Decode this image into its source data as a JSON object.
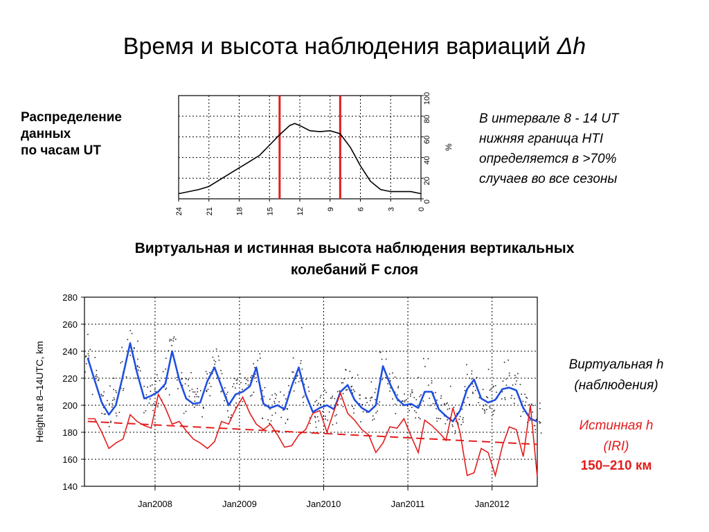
{
  "title": {
    "text": "Время и высота наблюдения вариаций ",
    "delta": "Δh"
  },
  "left_caption": {
    "line1": "Распределение",
    "line2": "данных",
    "line3": "по часам UT"
  },
  "right_caption": {
    "line1": "В интервале 8 - 14 UT",
    "line2": "нижняя граница HTI",
    "line3": "определяется в >70%",
    "line4": "случаев во все сезоны"
  },
  "subtitle": {
    "line1": "Виртуальная и истинная высота наблюдения вертикальных",
    "line2": "колебаний F слоя"
  },
  "legend": {
    "virtual_line1": "Виртуальная h",
    "virtual_line2": "(наблюдения)",
    "true_line1": "Истинная h",
    "true_line2": "(IRI)",
    "range": "150–210 км"
  },
  "colors": {
    "red": "#e21c1c",
    "blue": "#1f4fe0",
    "black": "#000000",
    "dots": "#222222"
  },
  "chart_data": [
    {
      "type": "line",
      "title": "",
      "x_ticks": [
        "24",
        "21",
        "18",
        "15",
        "12",
        "9",
        "6",
        "3",
        "0"
      ],
      "y_ticks": [
        "0",
        "20",
        "40",
        "60",
        "80",
        "100"
      ],
      "ylabel": "%",
      "xlim": [
        24,
        0
      ],
      "ylim": [
        0,
        100
      ],
      "grid": true,
      "vertical_markers_x": [
        14,
        8
      ],
      "series": [
        {
          "x": [
            24,
            23,
            22,
            21,
            20,
            19,
            18,
            17,
            16,
            15,
            14,
            13,
            12.5,
            12,
            11,
            10,
            9,
            8,
            7,
            6,
            5,
            4,
            3,
            2,
            1,
            0
          ],
          "values": [
            5,
            7,
            9,
            12,
            18,
            24,
            30,
            36,
            42,
            52,
            62,
            71,
            73,
            71,
            66,
            65,
            66,
            63,
            50,
            32,
            17,
            9,
            7,
            7,
            7,
            5
          ]
        }
      ]
    },
    {
      "type": "line",
      "title": "",
      "ylabel": "Height at 8–14UTC, km",
      "x_ticks": [
        "Jan2008",
        "Jan2009",
        "Jan2010",
        "Jan2011",
        "Jan2012"
      ],
      "y_ticks": [
        "140",
        "160",
        "180",
        "200",
        "220",
        "240",
        "260",
        "280"
      ],
      "xlim": [
        "2007-03",
        "2012-07"
      ],
      "ylim": [
        140,
        280
      ],
      "grid": true,
      "series": [
        {
          "name": "",
          "style": "blue",
          "x": [
            "2007-03",
            "2007-04",
            "2007-05",
            "2007-06",
            "2007-07",
            "2007-08",
            "2007-09",
            "2007-10",
            "2007-11",
            "2007-12",
            "2008-01",
            "2008-02",
            "2008-03",
            "2008-04",
            "2008-05",
            "2008-06",
            "2008-07",
            "2008-08",
            "2008-09",
            "2008-10",
            "2008-11",
            "2008-12",
            "2009-01",
            "2009-02",
            "2009-03",
            "2009-04",
            "2009-05",
            "2009-06",
            "2009-07",
            "2009-08",
            "2009-09",
            "2009-10",
            "2009-11",
            "2009-12",
            "2010-01",
            "2010-02",
            "2010-03",
            "2010-04",
            "2010-05",
            "2010-06",
            "2010-07",
            "2010-08",
            "2010-09",
            "2010-10",
            "2010-11",
            "2010-12",
            "2011-01",
            "2011-02",
            "2011-03",
            "2011-04",
            "2011-05",
            "2011-06",
            "2011-07",
            "2011-08",
            "2011-09",
            "2011-10",
            "2011-11",
            "2011-12",
            "2012-01",
            "2012-02",
            "2012-03",
            "2012-04",
            "2012-05",
            "2012-06",
            "2012-07"
          ],
          "values": [
            235,
            218,
            202,
            193,
            200,
            222,
            246,
            224,
            205,
            207,
            210,
            216,
            240,
            219,
            205,
            201,
            202,
            218,
            228,
            214,
            200,
            208,
            210,
            214,
            228,
            201,
            198,
            200,
            197,
            214,
            228,
            208,
            195,
            198,
            200,
            197,
            210,
            215,
            204,
            198,
            195,
            200,
            229,
            216,
            205,
            200,
            201,
            198,
            210,
            210,
            197,
            192,
            188,
            196,
            212,
            219,
            205,
            202,
            204,
            212,
            213,
            211,
            198,
            190,
            188
          ]
        },
        {
          "name": "",
          "style": "red",
          "x": [
            "2007-03",
            "2007-04",
            "2007-05",
            "2007-06",
            "2007-07",
            "2007-08",
            "2007-09",
            "2007-10",
            "2007-11",
            "2007-12",
            "2008-01",
            "2008-02",
            "2008-03",
            "2008-04",
            "2008-05",
            "2008-06",
            "2008-07",
            "2008-08",
            "2008-09",
            "2008-10",
            "2008-11",
            "2008-12",
            "2009-01",
            "2009-02",
            "2009-03",
            "2009-04",
            "2009-05",
            "2009-06",
            "2009-07",
            "2009-08",
            "2009-09",
            "2009-10",
            "2009-11",
            "2009-12",
            "2010-01",
            "2010-02",
            "2010-03",
            "2010-04",
            "2010-05",
            "2010-06",
            "2010-07",
            "2010-08",
            "2010-09",
            "2010-10",
            "2010-11",
            "2010-12",
            "2011-01",
            "2011-02",
            "2011-03",
            "2011-04",
            "2011-05",
            "2011-06",
            "2011-07",
            "2011-08",
            "2011-09",
            "2011-10",
            "2011-11",
            "2011-12",
            "2012-01",
            "2012-02",
            "2012-03",
            "2012-04",
            "2012-05",
            "2012-06",
            "2012-07"
          ],
          "values": [
            190,
            190,
            180,
            168,
            172,
            175,
            193,
            188,
            185,
            183,
            208,
            198,
            186,
            188,
            181,
            175,
            172,
            168,
            173,
            188,
            186,
            197,
            206,
            194,
            186,
            182,
            186,
            178,
            169,
            170,
            178,
            182,
            194,
            196,
            180,
            196,
            209,
            194,
            189,
            182,
            178,
            165,
            172,
            184,
            183,
            190,
            177,
            165,
            189,
            185,
            180,
            174,
            198,
            180,
            148,
            150,
            168,
            165,
            148,
            170,
            184,
            182,
            162,
            200,
            147
          ]
        },
        {
          "name": "",
          "style": "red-dashed",
          "x": [
            "2007-03",
            "2012-07"
          ],
          "values": [
            188,
            171
          ]
        }
      ]
    }
  ]
}
